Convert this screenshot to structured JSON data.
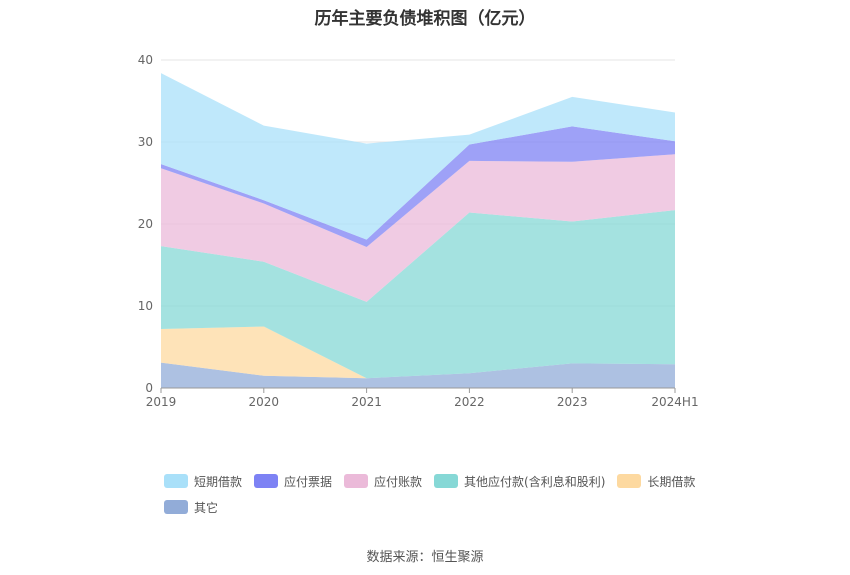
{
  "chart_data": {
    "type": "area",
    "title": "历年主要负债堆积图（亿元）",
    "categories": [
      "2019",
      "2020",
      "2021",
      "2022",
      "2023",
      "2024H1"
    ],
    "ylim": [
      0,
      40
    ],
    "yticks": [
      "0",
      "10",
      "20",
      "30",
      "40"
    ],
    "stacked": true,
    "grid": true,
    "legend_position": "bottom",
    "series": [
      {
        "name": "其它",
        "color": "#92acd8",
        "values": [
          3.1,
          1.5,
          1.2,
          1.8,
          3.0,
          2.9
        ]
      },
      {
        "name": "长期借款",
        "color": "#fdd9a0",
        "values": [
          4.1,
          6.0,
          0.0,
          0.0,
          0.0,
          0.0
        ]
      },
      {
        "name": "其他应付款(含利息和股利)",
        "color": "#86d8d6",
        "values": [
          10.1,
          7.9,
          9.3,
          19.6,
          17.3,
          18.8
        ]
      },
      {
        "name": "应付账款",
        "color": "#ebbad9",
        "values": [
          9.5,
          7.1,
          6.7,
          6.3,
          7.3,
          6.8
        ]
      },
      {
        "name": "应付票据",
        "color": "#7d82f4",
        "values": [
          0.5,
          0.4,
          0.9,
          2.0,
          4.3,
          1.6
        ]
      },
      {
        "name": "短期借款",
        "color": "#a9e0f9",
        "values": [
          11.1,
          9.1,
          11.7,
          1.2,
          3.6,
          3.5
        ]
      }
    ],
    "legend_order": [
      "短期借款",
      "应付票据",
      "应付账款",
      "其他应付款(含利息和股利)",
      "长期借款",
      "其它"
    ]
  },
  "source_text": "数据来源：恒生聚源"
}
